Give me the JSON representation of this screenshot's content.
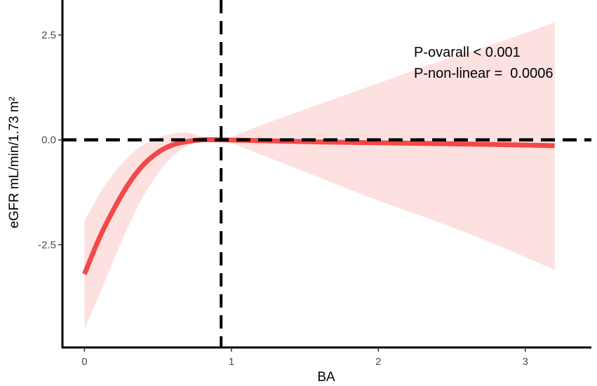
{
  "chart_data": {
    "type": "line",
    "xlabel": "BA",
    "ylabel": "eGFR mL/min/1.73 m²",
    "xlim": [
      -0.15,
      3.45
    ],
    "ylim": [
      -4.95,
      3.2
    ],
    "x_ticks": [
      0,
      1,
      2,
      3
    ],
    "x_tick_labels": [
      "0",
      "1",
      "2",
      "3"
    ],
    "y_ticks": [
      2.5,
      0.0,
      -2.5
    ],
    "y_tick_labels": [
      "2.5",
      "0.0",
      "-2.5"
    ],
    "reference_lines": {
      "x": 0.93,
      "y": 0.0
    },
    "annotations": [
      "P-ovarall < 0.001",
      "P-non-linear =  0.0006"
    ],
    "grid": false,
    "colors": {
      "curve": "#f24848",
      "band": "#fde0e0",
      "reference": "#000000"
    },
    "series": [
      {
        "x": [
          0.0,
          0.1,
          0.2,
          0.3,
          0.4,
          0.5,
          0.6,
          0.7,
          0.8,
          0.93,
          1.2,
          1.6,
          2.0,
          2.4,
          2.8,
          3.2
        ],
        "y": [
          -3.2,
          -2.35,
          -1.65,
          -1.05,
          -0.6,
          -0.3,
          -0.12,
          -0.04,
          0.0,
          0.0,
          -0.02,
          -0.05,
          -0.07,
          -0.09,
          -0.11,
          -0.14
        ],
        "lower": [
          -4.5,
          -3.7,
          -2.85,
          -2.05,
          -1.35,
          -0.8,
          -0.4,
          -0.15,
          -0.05,
          0.0,
          -0.35,
          -0.9,
          -1.45,
          -1.95,
          -2.5,
          -3.1
        ],
        "upper": [
          -1.95,
          -1.3,
          -0.8,
          -0.4,
          -0.12,
          0.05,
          0.15,
          0.18,
          0.08,
          0.0,
          0.35,
          0.85,
          1.35,
          1.85,
          2.3,
          2.8
        ]
      }
    ]
  }
}
